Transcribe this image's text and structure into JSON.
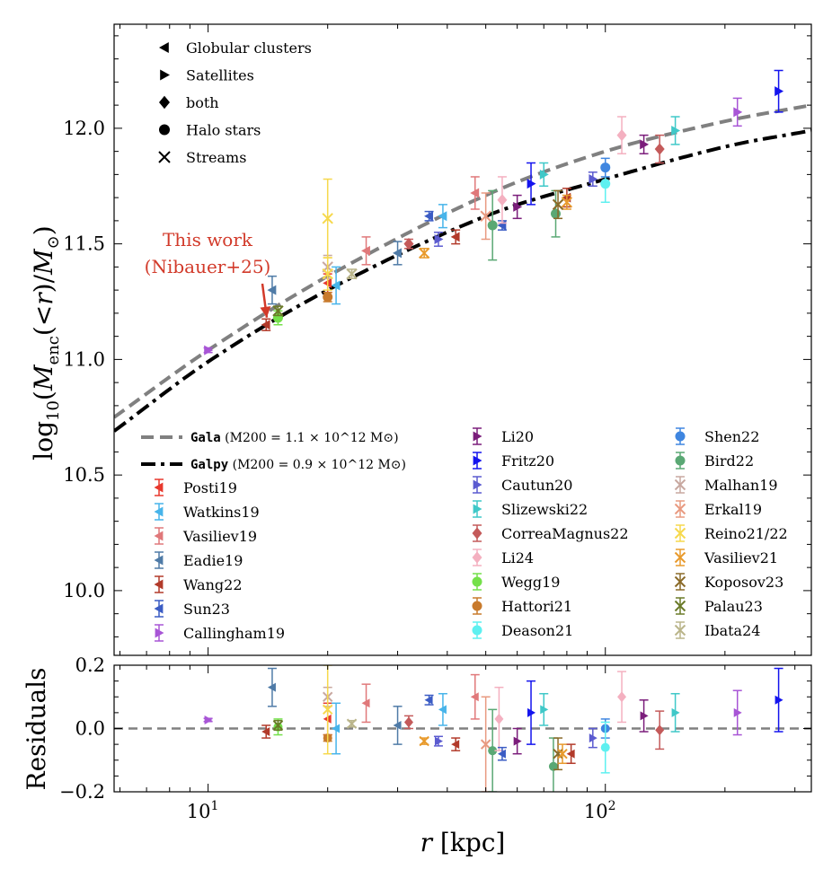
{
  "chart_data": {
    "type": "scatter",
    "x_scale": "log",
    "xlim": [
      5.8,
      330
    ],
    "xlabel": "r [kpc]",
    "x_ticks": [
      10,
      100
    ],
    "x_tick_labels": [
      "10^1",
      "10^2"
    ],
    "top_panel": {
      "ylabel": "log10(M_enc(<r)/M⊙)",
      "ylim": [
        9.72,
        12.45
      ],
      "y_ticks": [
        10.0,
        10.5,
        11.0,
        11.5,
        12.0
      ],
      "y_tick_labels": [
        "10.0",
        "10.5",
        "11.0",
        "11.5",
        "12.0"
      ]
    },
    "bottom_panel": {
      "ylabel": "Residuals",
      "ylim": [
        -0.2,
        0.2
      ],
      "y_ticks": [
        -0.2,
        0.0,
        0.2
      ],
      "y_tick_labels": [
        "−0.2",
        "0.0",
        "0.2"
      ]
    },
    "marker_legend": [
      {
        "symbol": "triangle-left",
        "label": "Globular clusters"
      },
      {
        "symbol": "triangle-right",
        "label": "Satellites"
      },
      {
        "symbol": "diamond",
        "label": "both"
      },
      {
        "symbol": "circle",
        "label": "Halo stars"
      },
      {
        "symbol": "x",
        "label": "Streams"
      }
    ],
    "annotation": {
      "line1": "This work",
      "line2": "(Nibauer+25)",
      "color": "#d23a2a",
      "points_to": [
        14.5,
        11.15
      ]
    },
    "curves": [
      {
        "code": "Gala",
        "label_rest": " (M200 = 1.1 × 10^12 M⊙)",
        "style": "dashed",
        "color": "#808080",
        "x": [
          5.8,
          10,
          20,
          50,
          100,
          200,
          330
        ],
        "y": [
          10.75,
          11.04,
          11.36,
          11.71,
          11.9,
          12.03,
          12.1
        ]
      },
      {
        "code": "Galpy",
        "label_rest": " (M200 = 0.9 × 10^12 M⊙)",
        "style": "dashdot",
        "color": "#000000",
        "x": [
          5.8,
          10,
          20,
          50,
          100,
          200,
          330
        ],
        "y": [
          10.69,
          10.99,
          11.3,
          11.62,
          11.78,
          11.92,
          11.99
        ]
      }
    ],
    "series": [
      {
        "name": "Posti19",
        "marker": "triangle-left",
        "color": "#e8382d",
        "points": [
          {
            "x": 20,
            "y": 11.33,
            "err": 0.04
          }
        ]
      },
      {
        "name": "Watkins19",
        "marker": "triangle-left",
        "color": "#47b4ea",
        "points": [
          {
            "x": 21,
            "y": 11.32,
            "err": 0.08
          },
          {
            "x": 39,
            "y": 11.62,
            "err": 0.05
          }
        ]
      },
      {
        "name": "Vasiliev19",
        "marker": "triangle-left",
        "color": "#e0787a",
        "points": [
          {
            "x": 25,
            "y": 11.47,
            "err": 0.06
          },
          {
            "x": 47,
            "y": 11.72,
            "err": 0.07
          }
        ]
      },
      {
        "name": "Eadie19",
        "marker": "triangle-left",
        "color": "#4f7ba7",
        "points": [
          {
            "x": 14.5,
            "y": 11.3,
            "err": 0.06
          },
          {
            "x": 30,
            "y": 11.46,
            "err": 0.05
          }
        ]
      },
      {
        "name": "Wang22",
        "marker": "triangle-left",
        "color": "#b23a2a",
        "points": [
          {
            "x": 14,
            "y": 11.15,
            "err": 0.025
          },
          {
            "x": 42,
            "y": 11.53,
            "err": 0.03
          },
          {
            "x": 80,
            "y": 11.7,
            "err": 0.04
          }
        ]
      },
      {
        "name": "Sun23",
        "marker": "triangle-left",
        "color": "#3b5cc4",
        "points": [
          {
            "x": 36,
            "y": 11.62,
            "err": 0.02
          },
          {
            "x": 55,
            "y": 11.58,
            "err": 0.02
          }
        ]
      },
      {
        "name": "Callingham19",
        "marker": "triangle-right",
        "color": "#a855d6",
        "points": [
          {
            "x": 10,
            "y": 11.04,
            "err": 0.01
          },
          {
            "x": 215,
            "y": 12.07,
            "err": 0.06
          }
        ]
      },
      {
        "name": "Li20",
        "marker": "triangle-right",
        "color": "#7b1d7b",
        "points": [
          {
            "x": 60,
            "y": 11.66,
            "err": 0.05
          },
          {
            "x": 125,
            "y": 11.93,
            "err": 0.04
          }
        ]
      },
      {
        "name": "Fritz20",
        "marker": "triangle-right",
        "color": "#1414ee",
        "points": [
          {
            "x": 65,
            "y": 11.76,
            "err": 0.09
          },
          {
            "x": 273,
            "y": 12.16,
            "err": 0.09
          }
        ]
      },
      {
        "name": "Cautun20",
        "marker": "triangle-right",
        "color": "#5b5bd0",
        "points": [
          {
            "x": 38,
            "y": 11.52,
            "err": 0.03
          },
          {
            "x": 93,
            "y": 11.78,
            "err": 0.03
          }
        ]
      },
      {
        "name": "Slizewski22",
        "marker": "triangle-right",
        "color": "#3fc8c8",
        "points": [
          {
            "x": 70,
            "y": 11.8,
            "err": 0.05
          },
          {
            "x": 150,
            "y": 11.99,
            "err": 0.06
          }
        ]
      },
      {
        "name": "CorreaMagnus22",
        "marker": "diamond",
        "color": "#c45a5a",
        "points": [
          {
            "x": 32,
            "y": 11.5,
            "err": 0.02
          },
          {
            "x": 137,
            "y": 11.91,
            "err": 0.06
          }
        ]
      },
      {
        "name": "Li24",
        "marker": "diamond",
        "color": "#f4b0c0",
        "points": [
          {
            "x": 55,
            "y": 11.69,
            "err": 0.1
          },
          {
            "x": 110,
            "y": 11.97,
            "err": 0.08
          }
        ]
      },
      {
        "name": "Wegg19",
        "marker": "circle",
        "color": "#74e04a",
        "points": [
          {
            "x": 15,
            "y": 11.18,
            "err": 0.03
          }
        ]
      },
      {
        "name": "Hattori21",
        "marker": "circle",
        "color": "#c87a2c",
        "points": [
          {
            "x": 20,
            "y": 11.27,
            "err": 0.02
          }
        ]
      },
      {
        "name": "Deason21",
        "marker": "circle",
        "color": "#5ef0f0",
        "points": [
          {
            "x": 100,
            "y": 11.76,
            "err": 0.08
          }
        ]
      },
      {
        "name": "Shen22",
        "marker": "circle",
        "color": "#3f86e0",
        "points": [
          {
            "x": 100,
            "y": 11.83,
            "err": 0.04
          }
        ]
      },
      {
        "name": "Bird22",
        "marker": "circle",
        "color": "#5aa874",
        "points": [
          {
            "x": 52,
            "y": 11.58,
            "err": 0.15
          },
          {
            "x": 75,
            "y": 11.63,
            "err": 0.1
          }
        ]
      },
      {
        "name": "Malhan19",
        "marker": "x",
        "color": "#c8a8a0",
        "points": [
          {
            "x": 20,
            "y": 11.4,
            "err": 0.05
          }
        ]
      },
      {
        "name": "Erkal19",
        "marker": "x",
        "color": "#e89a80",
        "points": [
          {
            "x": 50,
            "y": 11.62,
            "err": 0.1
          }
        ]
      },
      {
        "name": "Reino21/22",
        "marker": "x",
        "color": "#f6d84c",
        "points": [
          {
            "x": 20,
            "y": 11.61,
            "err": 0.17
          },
          {
            "x": 20,
            "y": 11.37,
            "err": 0.07
          }
        ]
      },
      {
        "name": "Vasiliev21",
        "marker": "x",
        "color": "#e89a2c",
        "points": [
          {
            "x": 35,
            "y": 11.46,
            "err": 0.02
          },
          {
            "x": 80,
            "y": 11.68,
            "err": 0.03
          }
        ]
      },
      {
        "name": "Koposov23",
        "marker": "x",
        "color": "#8a6a28",
        "points": [
          {
            "x": 76,
            "y": 11.67,
            "err": 0.06
          }
        ]
      },
      {
        "name": "Palau23",
        "marker": "x",
        "color": "#6a7a28",
        "points": [
          {
            "x": 15,
            "y": 11.21,
            "err": 0.02
          }
        ]
      },
      {
        "name": "Ibata24",
        "marker": "x",
        "color": "#bab58a",
        "points": [
          {
            "x": 23,
            "y": 11.37,
            "err": 0.02
          }
        ]
      }
    ],
    "residuals": [
      {
        "x": 10,
        "y": 0.027,
        "err": 0.005,
        "marker": "triangle-right",
        "color": "#a855d6"
      },
      {
        "x": 14.5,
        "y": 0.13,
        "err": 0.06,
        "marker": "triangle-left",
        "color": "#4f7ba7"
      },
      {
        "x": 14,
        "y": -0.01,
        "err": 0.02,
        "marker": "triangle-left",
        "color": "#b23a2a"
      },
      {
        "x": 15,
        "y": 0.005,
        "err": 0.025,
        "marker": "circle",
        "color": "#74e04a"
      },
      {
        "x": 15,
        "y": 0.01,
        "err": 0.015,
        "marker": "x",
        "color": "#6a7a28"
      },
      {
        "x": 20,
        "y": 0.03,
        "err": 0.05,
        "marker": "triangle-left",
        "color": "#e8382d"
      },
      {
        "x": 20,
        "y": -0.03,
        "err": 0.01,
        "marker": "circle",
        "color": "#c87a2c"
      },
      {
        "x": 20,
        "y": 0.1,
        "err": 0.03,
        "marker": "x",
        "color": "#c8a8a0"
      },
      {
        "x": 20,
        "y": 0.06,
        "err": 0.14,
        "marker": "x",
        "color": "#f6d84c"
      },
      {
        "x": 21,
        "y": 0.0,
        "err": 0.08,
        "marker": "triangle-left",
        "color": "#47b4ea"
      },
      {
        "x": 23,
        "y": 0.015,
        "err": 0.01,
        "marker": "x",
        "color": "#bab58a"
      },
      {
        "x": 25,
        "y": 0.08,
        "err": 0.06,
        "marker": "triangle-left",
        "color": "#e0787a"
      },
      {
        "x": 30,
        "y": 0.01,
        "err": 0.06,
        "marker": "triangle-left",
        "color": "#4f7ba7"
      },
      {
        "x": 32,
        "y": 0.02,
        "err": 0.02,
        "marker": "diamond",
        "color": "#c45a5a"
      },
      {
        "x": 35,
        "y": -0.04,
        "err": 0.01,
        "marker": "x",
        "color": "#e89a2c"
      },
      {
        "x": 36,
        "y": 0.09,
        "err": 0.015,
        "marker": "triangle-left",
        "color": "#3b5cc4"
      },
      {
        "x": 38,
        "y": -0.04,
        "err": 0.015,
        "marker": "triangle-right",
        "color": "#5b5bd0"
      },
      {
        "x": 39,
        "y": 0.06,
        "err": 0.05,
        "marker": "triangle-left",
        "color": "#47b4ea"
      },
      {
        "x": 42,
        "y": -0.05,
        "err": 0.02,
        "marker": "triangle-left",
        "color": "#b23a2a"
      },
      {
        "x": 47,
        "y": 0.1,
        "err": 0.07,
        "marker": "triangle-left",
        "color": "#e0787a"
      },
      {
        "x": 50,
        "y": -0.05,
        "err": 0.15,
        "marker": "x",
        "color": "#e89a80"
      },
      {
        "x": 52,
        "y": -0.07,
        "err": 0.13,
        "marker": "circle",
        "color": "#5aa874"
      },
      {
        "x": 54,
        "y": 0.03,
        "err": 0.1,
        "marker": "diamond",
        "color": "#f4b0c0"
      },
      {
        "x": 55,
        "y": -0.08,
        "err": 0.02,
        "marker": "triangle-left",
        "color": "#3b5cc4"
      },
      {
        "x": 60,
        "y": -0.04,
        "err": 0.04,
        "marker": "triangle-right",
        "color": "#7b1d7b"
      },
      {
        "x": 65,
        "y": 0.05,
        "err": 0.1,
        "marker": "triangle-right",
        "color": "#1414ee"
      },
      {
        "x": 70,
        "y": 0.06,
        "err": 0.05,
        "marker": "triangle-right",
        "color": "#3fc8c8"
      },
      {
        "x": 74,
        "y": -0.12,
        "err": 0.09,
        "marker": "circle",
        "color": "#5aa874"
      },
      {
        "x": 76,
        "y": -0.08,
        "err": 0.05,
        "marker": "x",
        "color": "#8a6a28"
      },
      {
        "x": 78,
        "y": -0.08,
        "err": 0.03,
        "marker": "x",
        "color": "#e89a2c"
      },
      {
        "x": 82,
        "y": -0.08,
        "err": 0.03,
        "marker": "triangle-left",
        "color": "#b23a2a"
      },
      {
        "x": 93,
        "y": -0.03,
        "err": 0.03,
        "marker": "triangle-right",
        "color": "#5b5bd0"
      },
      {
        "x": 100,
        "y": 0.0,
        "err": 0.03,
        "marker": "circle",
        "color": "#3f86e0"
      },
      {
        "x": 100,
        "y": -0.06,
        "err": 0.08,
        "marker": "circle",
        "color": "#5ef0f0"
      },
      {
        "x": 110,
        "y": 0.1,
        "err": 0.08,
        "marker": "diamond",
        "color": "#f4b0c0"
      },
      {
        "x": 125,
        "y": 0.04,
        "err": 0.05,
        "marker": "triangle-right",
        "color": "#7b1d7b"
      },
      {
        "x": 137,
        "y": -0.005,
        "err": 0.06,
        "marker": "diamond",
        "color": "#c45a5a"
      },
      {
        "x": 150,
        "y": 0.05,
        "err": 0.06,
        "marker": "triangle-right",
        "color": "#3fc8c8"
      },
      {
        "x": 215,
        "y": 0.05,
        "err": 0.07,
        "marker": "triangle-right",
        "color": "#a855d6"
      },
      {
        "x": 273,
        "y": 0.09,
        "err": 0.1,
        "marker": "triangle-right",
        "color": "#1414ee"
      }
    ]
  }
}
